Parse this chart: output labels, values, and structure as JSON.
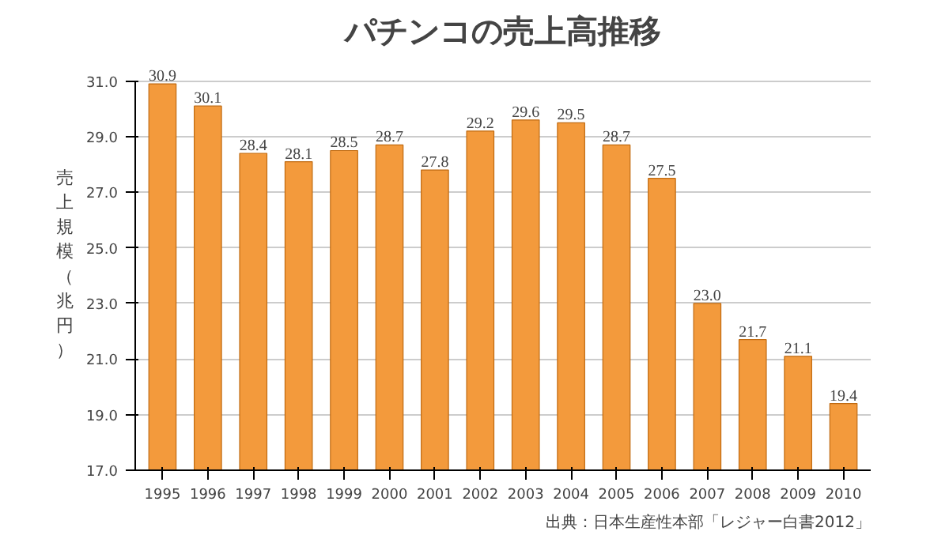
{
  "chart_data": {
    "type": "bar",
    "title": "パチンコの売上高推移",
    "ylabel": "売上規模（兆円）",
    "categories": [
      "1995",
      "1996",
      "1997",
      "1998",
      "1999",
      "2000",
      "2001",
      "2002",
      "2003",
      "2004",
      "2005",
      "2006",
      "2007",
      "2008",
      "2009",
      "2010"
    ],
    "values": [
      30.9,
      30.1,
      28.4,
      28.1,
      28.5,
      28.7,
      27.8,
      29.2,
      29.6,
      29.5,
      28.7,
      27.5,
      23.0,
      21.7,
      21.1,
      19.4
    ],
    "value_labels": [
      "30.9",
      "30.1",
      "28.4",
      "28.1",
      "28.5",
      "28.7",
      "27.8",
      "29.2",
      "29.6",
      "29.5",
      "28.7",
      "27.5",
      "23.0",
      "21.7",
      "21.1",
      "19.4"
    ],
    "color": "#f39a3c",
    "ylim": [
      17.0,
      31.0
    ],
    "yticks": [
      {
        "value": 17,
        "label": "17.0"
      },
      {
        "value": 19,
        "label": "19.0"
      },
      {
        "value": 21,
        "label": "21.0"
      },
      {
        "value": 23,
        "label": "23.0"
      },
      {
        "value": 25,
        "label": "25.0"
      },
      {
        "value": 27,
        "label": "27.0"
      },
      {
        "value": 29,
        "label": "29.0"
      },
      {
        "value": 31,
        "label": "31.0"
      }
    ],
    "grid": "y",
    "annotations": [
      "出典：日本生産性本部「レジャー白書2012」"
    ]
  }
}
